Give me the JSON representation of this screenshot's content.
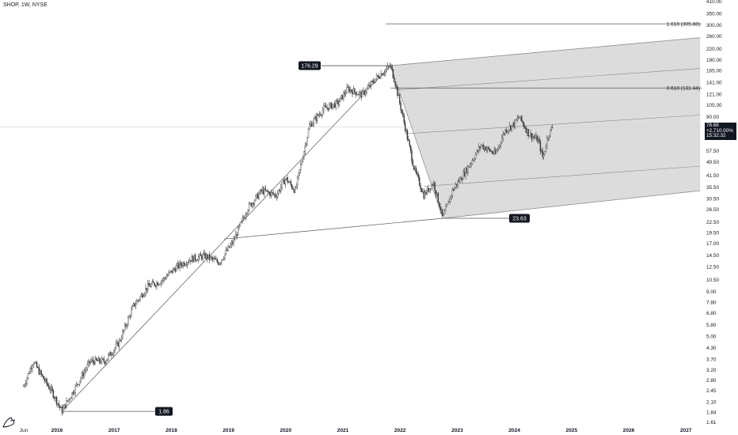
{
  "header": {
    "symbol_line": "SHOP, 1W, NYSE"
  },
  "price_tag": {
    "price": "78.68",
    "change": "+2,710.00%",
    "countdown": "15:32:32"
  },
  "colors": {
    "background": "#ffffff",
    "text": "#131722",
    "axis_text": "#131722",
    "candle": "#3a3a3a",
    "line": "#555555",
    "channel_fill": "#d6d6d6",
    "label_bg": "#131722",
    "label_text": "#ffffff",
    "current_price_line": "#d9d9d9"
  },
  "chart_data": {
    "type": "candlestick",
    "title": "SHOP, 1W, NYSE",
    "y_scale": "log",
    "ylim": [
      1.61,
      410
    ],
    "grid": false,
    "y_ticks": [
      "410.00",
      "350.00",
      "300.00",
      "260.00",
      "220.00",
      "190.00",
      "165.00",
      "141.00",
      "121.00",
      "105.00",
      "90.00",
      "57.50",
      "49.50",
      "41.50",
      "35.50",
      "30.50",
      "26.50",
      "22.50",
      "19.50",
      "17.00",
      "14.50",
      "12.50",
      "10.50",
      "9.00",
      "7.80",
      "6.80",
      "5.80",
      "5.00",
      "4.30",
      "3.70",
      "3.20",
      "2.80",
      "2.45",
      "2.10",
      "1.84",
      "1.61"
    ],
    "x_ticks": [
      "Jun",
      "2016",
      "2017",
      "2018",
      "2019",
      "2020",
      "2021",
      "2022",
      "2023",
      "2024",
      "2025",
      "2026",
      "2027"
    ],
    "price_path": [
      [
        "2015-06",
        2.6
      ],
      [
        "2015-08",
        3.6
      ],
      [
        "2015-10",
        2.9
      ],
      [
        "2015-12",
        2.4
      ],
      [
        "2016-02",
        1.86
      ],
      [
        "2016-05",
        2.6
      ],
      [
        "2016-08",
        3.6
      ],
      [
        "2016-11",
        3.6
      ],
      [
        "2017-02",
        4.6
      ],
      [
        "2017-05",
        7.4
      ],
      [
        "2017-08",
        9.6
      ],
      [
        "2017-11",
        10.4
      ],
      [
        "2018-02",
        12.4
      ],
      [
        "2018-05",
        13.8
      ],
      [
        "2018-08",
        14.4
      ],
      [
        "2018-11",
        13.2
      ],
      [
        "2019-02",
        17.4
      ],
      [
        "2019-05",
        27.0
      ],
      [
        "2019-08",
        34.0
      ],
      [
        "2019-11",
        32.0
      ],
      [
        "2020-01",
        40.0
      ],
      [
        "2020-03",
        34.0
      ],
      [
        "2020-06",
        80.0
      ],
      [
        "2020-09",
        100.0
      ],
      [
        "2020-12",
        108.0
      ],
      [
        "2021-02",
        130.0
      ],
      [
        "2021-05",
        120.0
      ],
      [
        "2021-08",
        150.0
      ],
      [
        "2021-11",
        176.29
      ],
      [
        "2021-12",
        140.0
      ],
      [
        "2022-02",
        80.0
      ],
      [
        "2022-04",
        45.0
      ],
      [
        "2022-06",
        32.0
      ],
      [
        "2022-08",
        38.0
      ],
      [
        "2022-10",
        23.63
      ],
      [
        "2022-12",
        34.0
      ],
      [
        "2023-03",
        45.0
      ],
      [
        "2023-06",
        62.0
      ],
      [
        "2023-09",
        55.0
      ],
      [
        "2023-11",
        75.0
      ],
      [
        "2024-01",
        82.0
      ],
      [
        "2024-02",
        90.0
      ],
      [
        "2024-04",
        72.0
      ],
      [
        "2024-06",
        66.0
      ],
      [
        "2024-07",
        52.0
      ],
      [
        "2024-08",
        70.0
      ],
      [
        "2024-09",
        78.68
      ]
    ],
    "annotations": {
      "high": {
        "date": "2021-11",
        "value": 176.29,
        "label": "176.29"
      },
      "low_2016": {
        "date": "2016-02",
        "value": 1.86,
        "label": "1.86"
      },
      "low_2022": {
        "date": "2022-10",
        "value": 23.63,
        "label": "23.63"
      },
      "fib_1618": {
        "label": "1.618 (305.88)",
        "value": 305.88
      },
      "fib_0618": {
        "label": "0.618 (131.44)",
        "value": 131.44
      }
    },
    "trend_lines": [
      {
        "from": [
          "2016-02",
          1.86
        ],
        "to": [
          "2021-11",
          176.29
        ]
      },
      {
        "from": [
          "2018-12",
          18.0
        ],
        "to": [
          "2022-10",
          23.63
        ]
      }
    ],
    "channel": {
      "upper": {
        "from": [
          "2021-11",
          176.29
        ],
        "to": [
          "2027-04",
          255.0
        ]
      },
      "lower": {
        "from": [
          "2022-10",
          23.63
        ],
        "to": [
          "2027-04",
          34.0
        ]
      },
      "inner_lines": [
        {
          "from": [
            "2021-12",
            128.0
          ],
          "to": [
            "2027-04",
            170.0
          ]
        },
        {
          "from": [
            "2022-02",
            72.0
          ],
          "to": [
            "2027-04",
            92.0
          ]
        },
        {
          "from": [
            "2022-06",
            36.0
          ],
          "to": [
            "2027-04",
            47.0
          ]
        }
      ]
    }
  }
}
